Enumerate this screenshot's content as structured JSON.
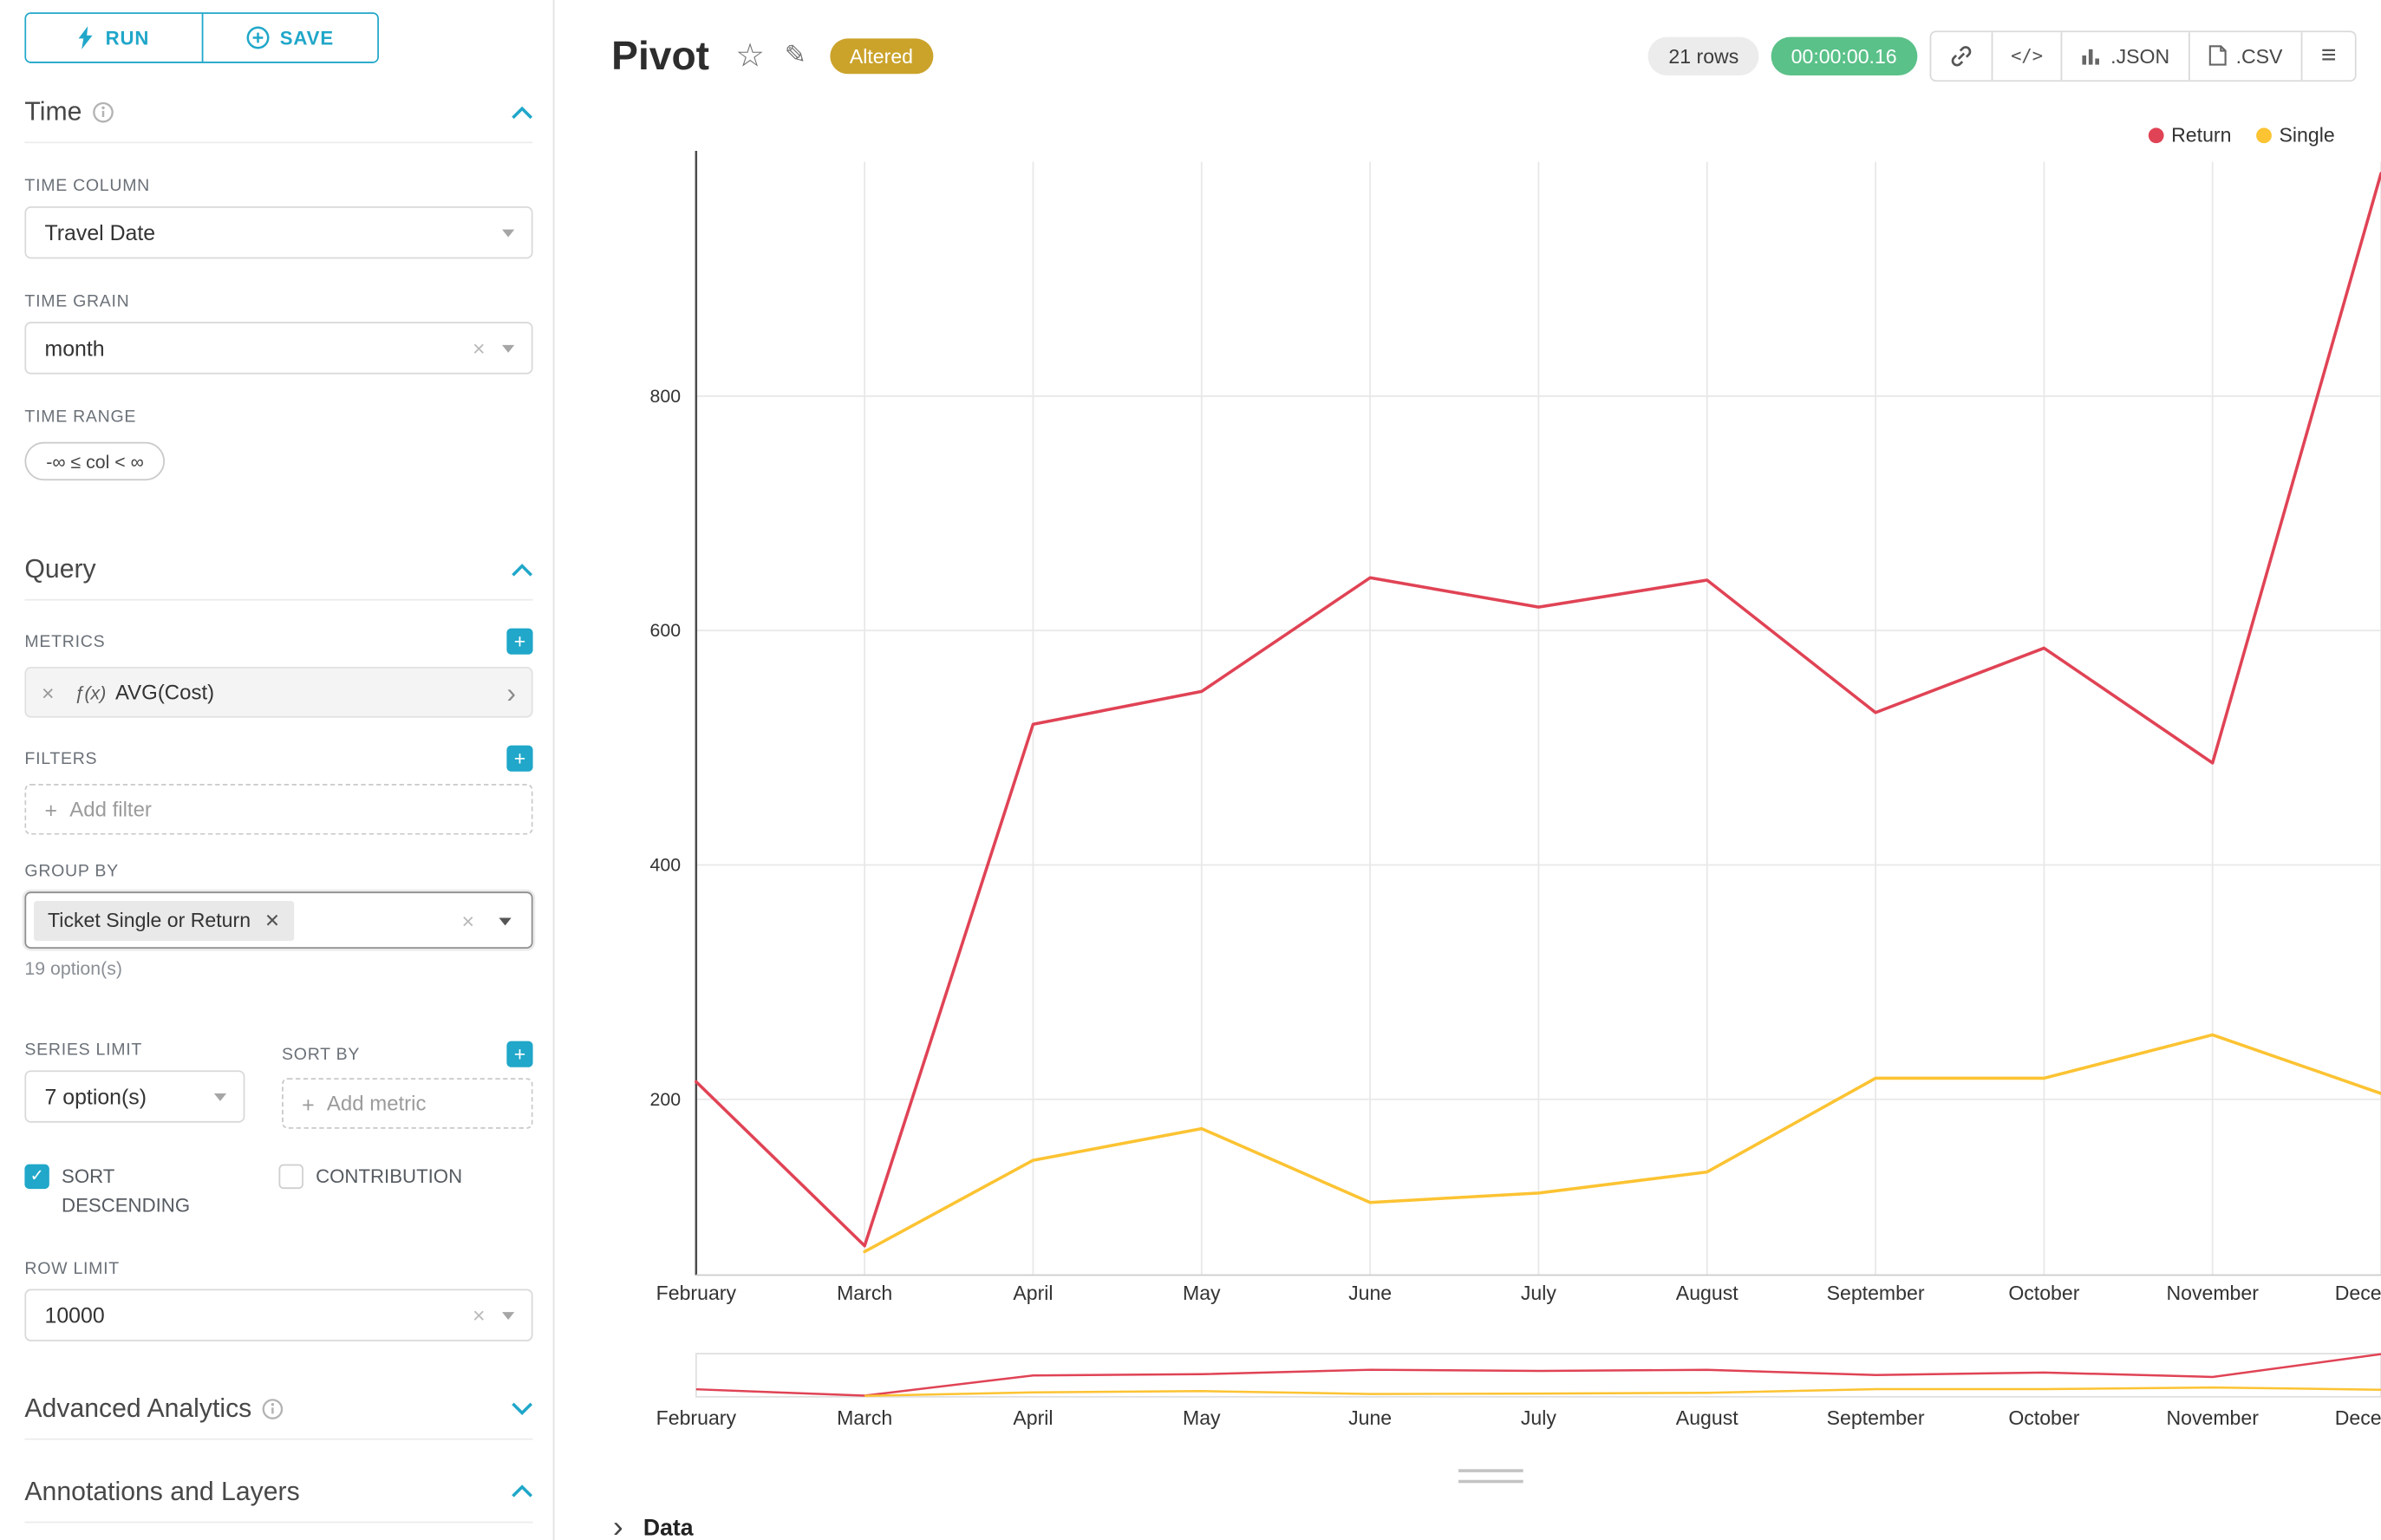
{
  "colors": {
    "accent": "#20a7c9",
    "altered_badge": "#cba32b",
    "timer_badge": "#5ac189",
    "return_series": "#e04355",
    "single_series": "#fcc332"
  },
  "sidebar": {
    "run_label": "RUN",
    "save_label": "SAVE",
    "time": {
      "title": "Time",
      "time_column_label": "TIME COLUMN",
      "time_column_value": "Travel Date",
      "time_grain_label": "TIME GRAIN",
      "time_grain_value": "month",
      "time_range_label": "TIME RANGE",
      "time_range_value": "-∞ ≤ col < ∞"
    },
    "query": {
      "title": "Query",
      "metrics_label": "METRICS",
      "metric_fx": "ƒ(x)",
      "metric_value": "AVG(Cost)",
      "filters_label": "FILTERS",
      "add_filter_placeholder": "Add filter",
      "group_by_label": "GROUP BY",
      "group_by_value": "Ticket Single or Return",
      "group_by_hint": "19 option(s)",
      "series_limit_label": "SERIES LIMIT",
      "series_limit_value": "7 option(s)",
      "sort_by_label": "SORT BY",
      "add_metric_placeholder": "Add metric",
      "sort_descending_label": "SORT DESCENDING",
      "contribution_label": "CONTRIBUTION",
      "row_limit_label": "ROW LIMIT",
      "row_limit_value": "10000"
    },
    "advanced_title": "Advanced Analytics",
    "annotations_title": "Annotations and Layers"
  },
  "header": {
    "title": "Pivot",
    "altered_badge": "Altered",
    "rows_badge": "21 rows",
    "timer_badge": "00:00:00.16",
    "code_icon": "</>",
    "json_label": ".JSON",
    "csv_label": ".CSV"
  },
  "data_section": {
    "label": "Data"
  },
  "chart_data": {
    "type": "line",
    "x": [
      "February",
      "March",
      "April",
      "May",
      "June",
      "July",
      "August",
      "September",
      "October",
      "November",
      "December"
    ],
    "series": [
      {
        "name": "Return",
        "color": "#e04355",
        "values": [
          215,
          75,
          520,
          548,
          645,
          620,
          643,
          530,
          585,
          487,
          990
        ]
      },
      {
        "name": "Single",
        "color": "#fcc332",
        "values": [
          null,
          70,
          148,
          175,
          112,
          120,
          138,
          218,
          218,
          255,
          205
        ]
      }
    ],
    "yticks": [
      200,
      400,
      600,
      800
    ],
    "ylim": [
      50,
      1000
    ],
    "xlabel": "",
    "ylabel": "",
    "legend": [
      "Return",
      "Single"
    ],
    "legend_position": "top-right",
    "grid": true,
    "has_mini_preview": true
  }
}
